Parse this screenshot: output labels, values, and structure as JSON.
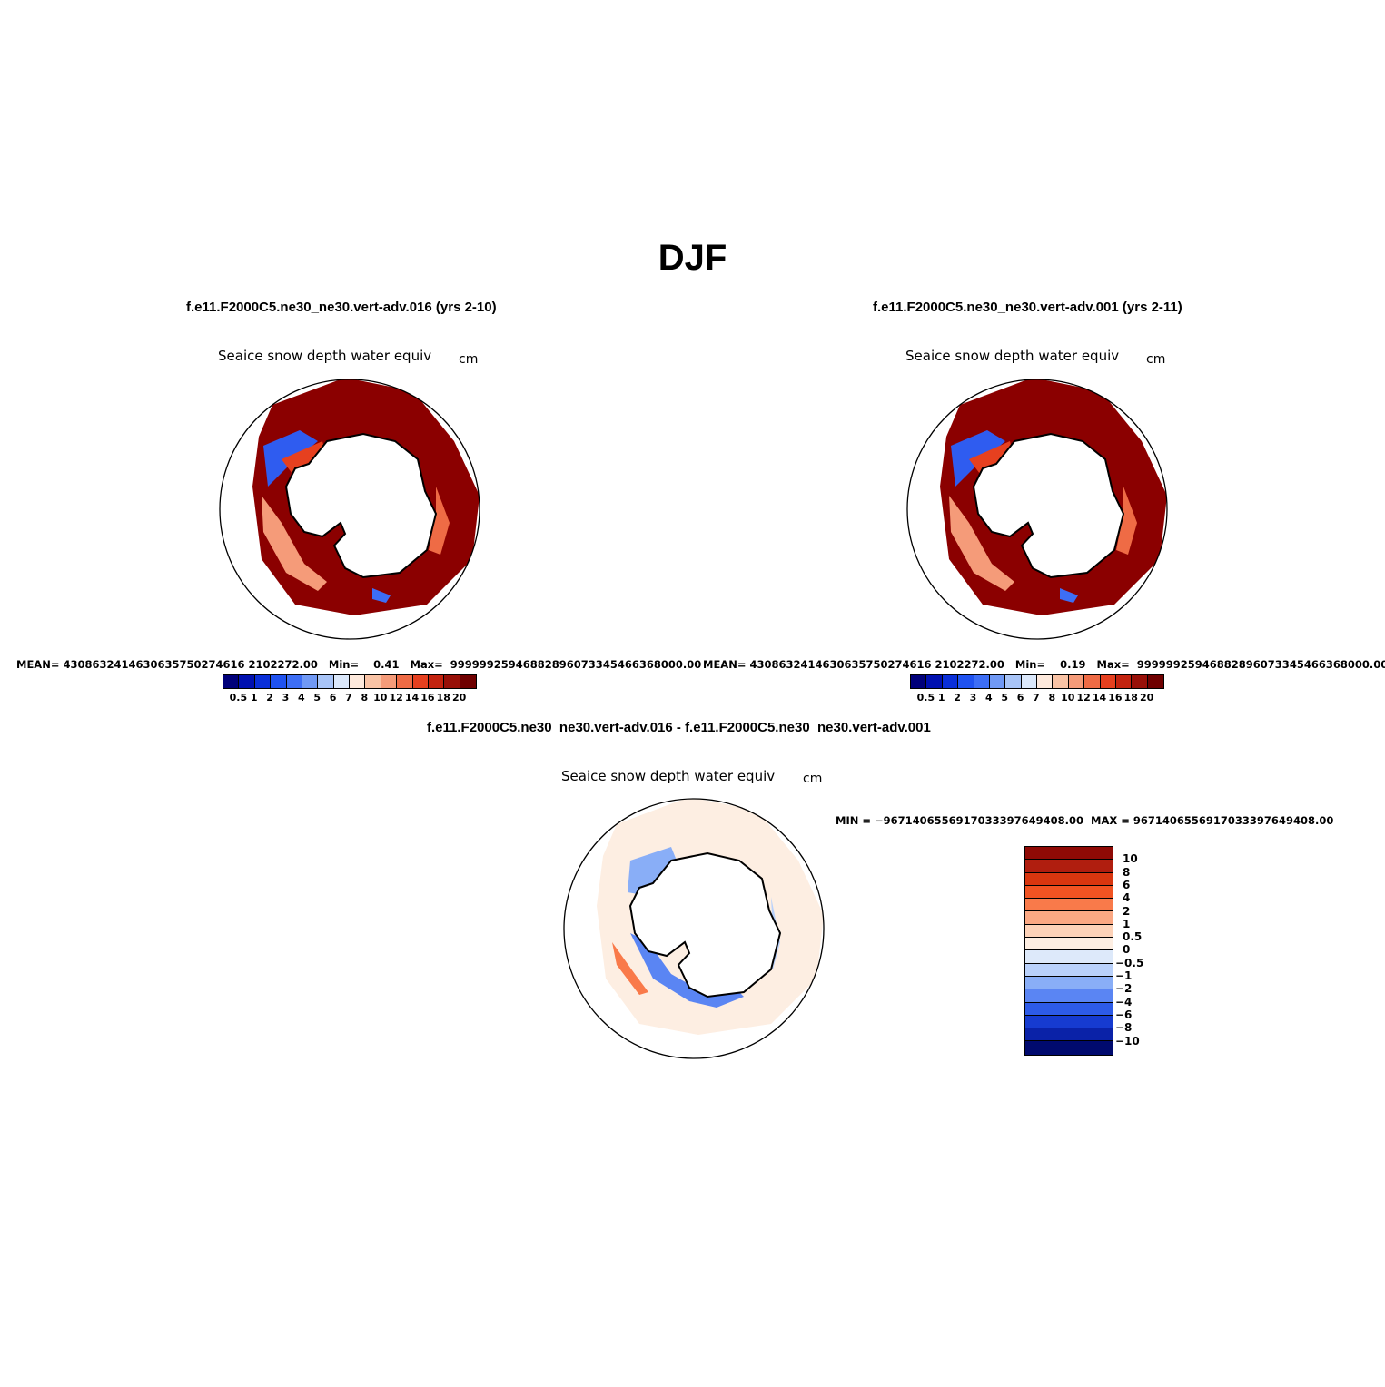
{
  "figure": {
    "title": "DJF"
  },
  "panels": [
    {
      "case": "f.e11.F2000C5.ne30_ne30.vert-adv.016 (yrs 2-10)",
      "variable": "Seaice snow depth water equiv",
      "units": "cm",
      "stats": "MEAN= 4308632414630635750274616­2102272.00   Min=    0.41   Max=  99999925946882896073345466368000.00",
      "mean": "4308632414630635750274616 2102272.00",
      "min": "0.41",
      "max": "99999925946882896073345466368000.00"
    },
    {
      "case": "f.e11.F2000C5.ne30_ne30.vert-adv.001 (yrs 2-11)",
      "variable": "Seaice snow depth water equiv",
      "units": "cm",
      "mean": "4308632414630635750274616 2102272.00",
      "min": "0.19",
      "max": "99999925946882896073345466368000.00"
    },
    {
      "case": "f.e11.F2000C5.ne30_ne30.vert-adv.016 - f.e11.F2000C5.ne30_ne30.vert-adv.001",
      "variable": "Seaice snow depth water equiv",
      "units": "cm",
      "minmax": "MIN = −96714065569170333976494 08.00  MAX = 96714065569170333976494 08.00"
    }
  ],
  "stats_text": {
    "p1": "MEAN= 4308632414630635750274616 2102272.00   Min=    0.41   Max=  99999925946882896073345466368000.00",
    "p2": "MEAN= 4308632414630635750274616 2102272.00   Min=    0.19   Max=  99999925946882896073345466368000.00",
    "p3": "MIN = −9671406556917033397649408.00  MAX = 9671406556917033397649408.00"
  },
  "colorbar_main": {
    "colors": [
      "#00007a",
      "#0010b0",
      "#0a2fd8",
      "#1f52f0",
      "#3d6ef5",
      "#7099f5",
      "#a8c4f7",
      "#dbe8fb",
      "#fde9dc",
      "#f9c3a5",
      "#f59b79",
      "#ef6b45",
      "#e6401f",
      "#c3230f",
      "#981008",
      "#6f0000"
    ],
    "labels": [
      "0.5",
      "1",
      "2",
      "3",
      "4",
      "5",
      "6",
      "7",
      "8",
      "10",
      "12",
      "14",
      "16",
      "18",
      "20"
    ]
  },
  "colorbar_diff": {
    "colors": [
      "#8f0a05",
      "#b01e0f",
      "#d9360f",
      "#f15322",
      "#f97a4a",
      "#fba883",
      "#fdd2b8",
      "#fdeee2",
      "#dde9fa",
      "#b9d1fb",
      "#89aef7",
      "#5a85f3",
      "#2d5be8",
      "#163bd0",
      "#0a22a8",
      "#000a6e"
    ],
    "labels": [
      "10",
      "8",
      "6",
      "4",
      "2",
      "1",
      "0.5",
      "0",
      "−0.5",
      "−1",
      "−2",
      "−4",
      "−6",
      "−8",
      "−10"
    ]
  }
}
